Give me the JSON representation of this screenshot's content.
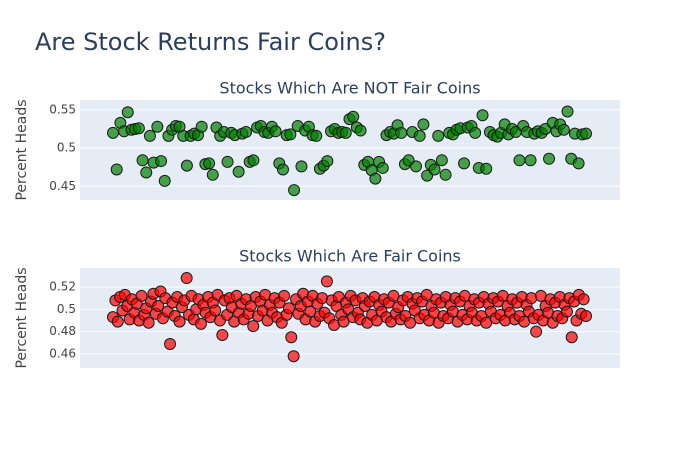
{
  "title": "Are Stock Returns Fair Coins?",
  "chart_data": [
    {
      "type": "scatter",
      "title": "Stocks Which Are NOT Fair Coins",
      "ylabel": "Percent Heads",
      "color": "#008000",
      "grid": true,
      "ylim": [
        0.432,
        0.563
      ],
      "yticks": [
        0.45,
        0.5,
        0.55
      ],
      "values": [
        0.52,
        0.472,
        0.533,
        0.522,
        0.547,
        0.524,
        0.525,
        0.526,
        0.484,
        0.468,
        0.516,
        0.481,
        0.528,
        0.483,
        0.457,
        0.516,
        0.524,
        0.529,
        0.528,
        0.516,
        0.477,
        0.516,
        0.519,
        0.517,
        0.528,
        0.479,
        0.48,
        0.465,
        0.527,
        0.516,
        0.521,
        0.482,
        0.52,
        0.517,
        0.469,
        0.519,
        0.521,
        0.482,
        0.484,
        0.527,
        0.529,
        0.521,
        0.52,
        0.528,
        0.522,
        0.48,
        0.472,
        0.517,
        0.518,
        0.445,
        0.529,
        0.476,
        0.523,
        0.528,
        0.517,
        0.516,
        0.473,
        0.477,
        0.483,
        0.522,
        0.525,
        0.52,
        0.521,
        0.52,
        0.538,
        0.541,
        0.527,
        0.523,
        0.478,
        0.482,
        0.471,
        0.46,
        0.482,
        0.474,
        0.517,
        0.521,
        0.519,
        0.53,
        0.52,
        0.479,
        0.484,
        0.521,
        0.476,
        0.516,
        0.531,
        0.464,
        0.478,
        0.472,
        0.516,
        0.484,
        0.465,
        0.52,
        0.518,
        0.524,
        0.526,
        0.48,
        0.527,
        0.529,
        0.52,
        0.474,
        0.543,
        0.473,
        0.521,
        0.517,
        0.515,
        0.52,
        0.531,
        0.518,
        0.525,
        0.521,
        0.484,
        0.529,
        0.521,
        0.484,
        0.519,
        0.522,
        0.52,
        0.525,
        0.486,
        0.533,
        0.522,
        0.531,
        0.524,
        0.548,
        0.486,
        0.519,
        0.48,
        0.518,
        0.519
      ]
    },
    {
      "type": "scatter",
      "title": "Stocks Which Are Fair Coins",
      "ylabel": "Percent Heads",
      "color": "#ff0000",
      "grid": true,
      "ylim": [
        0.4475,
        0.537
      ],
      "yticks": [
        0.46,
        0.48,
        0.5,
        0.52
      ],
      "values": [
        0.493,
        0.508,
        0.489,
        0.511,
        0.499,
        0.513,
        0.503,
        0.491,
        0.509,
        0.497,
        0.505,
        0.49,
        0.512,
        0.495,
        0.501,
        0.488,
        0.507,
        0.514,
        0.496,
        0.503,
        0.516,
        0.492,
        0.51,
        0.498,
        0.469,
        0.506,
        0.494,
        0.511,
        0.489,
        0.502,
        0.508,
        0.528,
        0.495,
        0.512,
        0.491,
        0.5,
        0.509,
        0.487,
        0.504,
        0.497,
        0.511,
        0.493,
        0.506,
        0.499,
        0.513,
        0.49,
        0.477,
        0.508,
        0.495,
        0.51,
        0.502,
        0.489,
        0.512,
        0.497,
        0.505,
        0.491,
        0.509,
        0.496,
        0.503,
        0.485,
        0.511,
        0.494,
        0.507,
        0.499,
        0.513,
        0.49,
        0.504,
        0.497,
        0.51,
        0.493,
        0.506,
        0.488,
        0.512,
        0.495,
        0.501,
        0.475,
        0.458,
        0.509,
        0.496,
        0.503,
        0.514,
        0.491,
        0.507,
        0.498,
        0.512,
        0.489,
        0.505,
        0.494,
        0.51,
        0.497,
        0.525,
        0.492,
        0.508,
        0.486,
        0.503,
        0.511,
        0.495,
        0.489,
        0.506,
        0.5,
        0.512,
        0.493,
        0.508,
        0.497,
        0.491,
        0.51,
        0.503,
        0.488,
        0.507,
        0.495,
        0.511,
        0.49,
        0.504,
        0.498,
        0.509,
        0.493,
        0.506,
        0.489,
        0.512,
        0.496,
        0.502,
        0.491,
        0.508,
        0.494,
        0.511,
        0.488,
        0.505,
        0.499,
        0.51,
        0.492,
        0.507,
        0.495,
        0.513,
        0.49,
        0.503,
        0.497,
        0.509,
        0.488,
        0.506,
        0.494,
        0.511,
        0.492,
        0.504,
        0.498,
        0.51,
        0.489,
        0.507,
        0.495,
        0.512,
        0.491,
        0.503,
        0.497,
        0.509,
        0.49,
        0.506,
        0.494,
        0.511,
        0.488,
        0.505,
        0.498,
        0.51,
        0.492,
        0.507,
        0.495,
        0.512,
        0.49,
        0.503,
        0.497,
        0.509,
        0.491,
        0.506,
        0.494,
        0.511,
        0.489,
        0.504,
        0.498,
        0.51,
        0.492,
        0.48,
        0.495,
        0.512,
        0.49,
        0.503,
        0.497,
        0.509,
        0.488,
        0.506,
        0.494,
        0.511,
        0.492,
        0.504,
        0.498,
        0.51,
        0.475,
        0.507,
        0.49,
        0.513,
        0.496,
        0.509,
        0.494
      ]
    }
  ]
}
